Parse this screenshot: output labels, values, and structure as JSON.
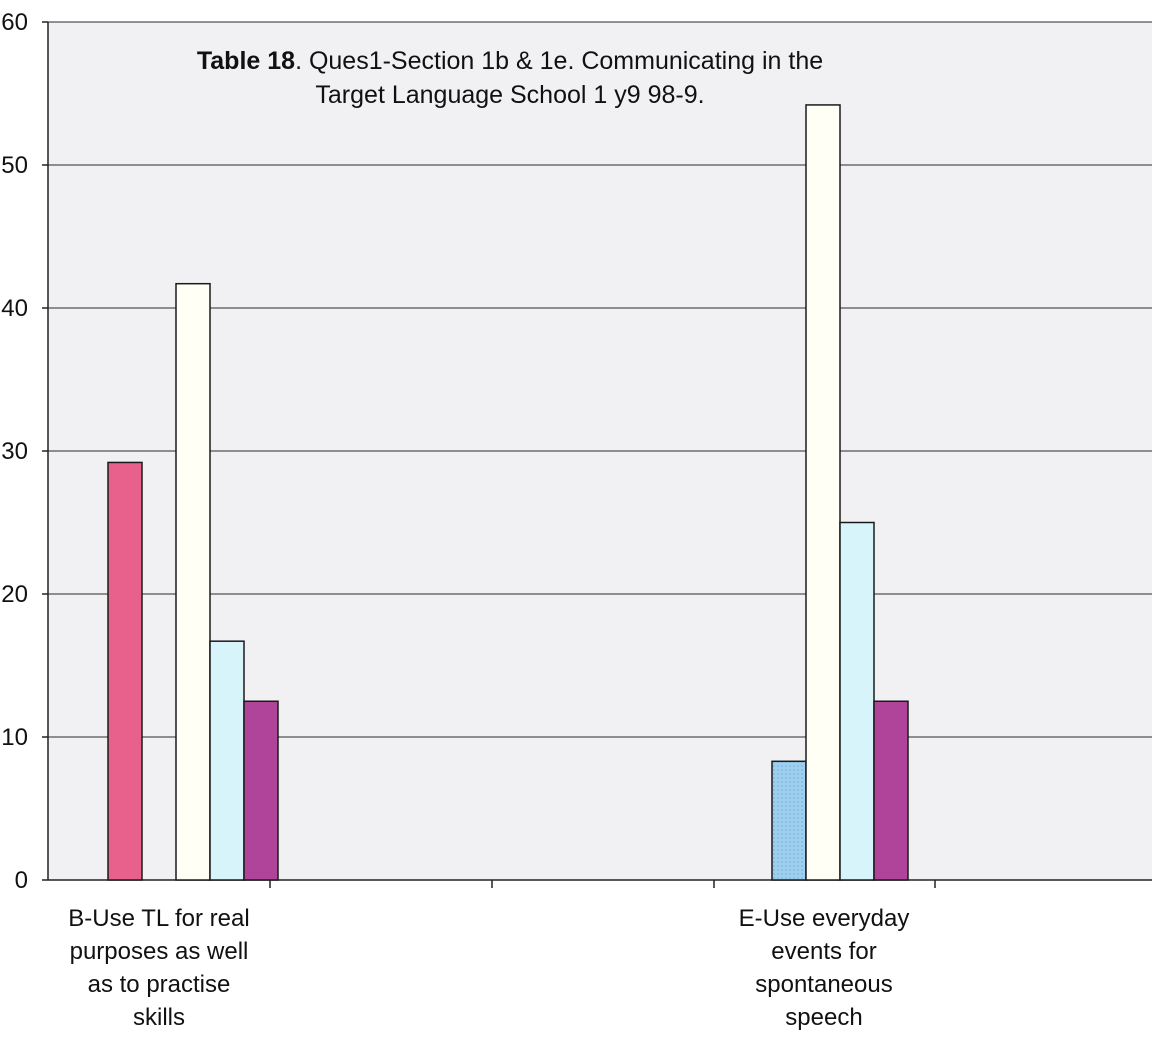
{
  "chart_data": {
    "type": "bar",
    "title_bold": "Table 18",
    "title_line1": ". Ques1-Section 1b & 1e.  Communicating in the",
    "title_line2": "Target Language School 1 y9 98-9.",
    "xlabel": "",
    "ylabel": "",
    "ylim": [
      0,
      60
    ],
    "yticks": [
      0,
      10,
      20,
      30,
      40,
      50,
      60
    ],
    "ytick_labels": [
      "0",
      "10",
      "20",
      "30",
      "40",
      "50",
      "60"
    ],
    "grid": true,
    "legend": "none",
    "categories": [
      "B-Use TL for real purposes as well as to practise skills",
      "E-Use everyday events for spontaneous speech"
    ],
    "category_lines": [
      [
        "B-Use TL for real",
        "purposes as well",
        "as to practise",
        "skills"
      ],
      [
        "E-Use everyday",
        "events for",
        "spontaneous",
        "speech"
      ]
    ],
    "series": [
      {
        "color": "#e8608c",
        "values": [
          29.2,
          0
        ]
      },
      {
        "color": "#9ecfee",
        "values": [
          0,
          8.3
        ]
      },
      {
        "color": "#fffff6",
        "values": [
          41.7,
          54.2
        ]
      },
      {
        "color": "#d8f4fb",
        "values": [
          16.7,
          25
        ]
      },
      {
        "color": "#b0449a",
        "values": [
          12.5,
          12.5
        ]
      }
    ]
  }
}
